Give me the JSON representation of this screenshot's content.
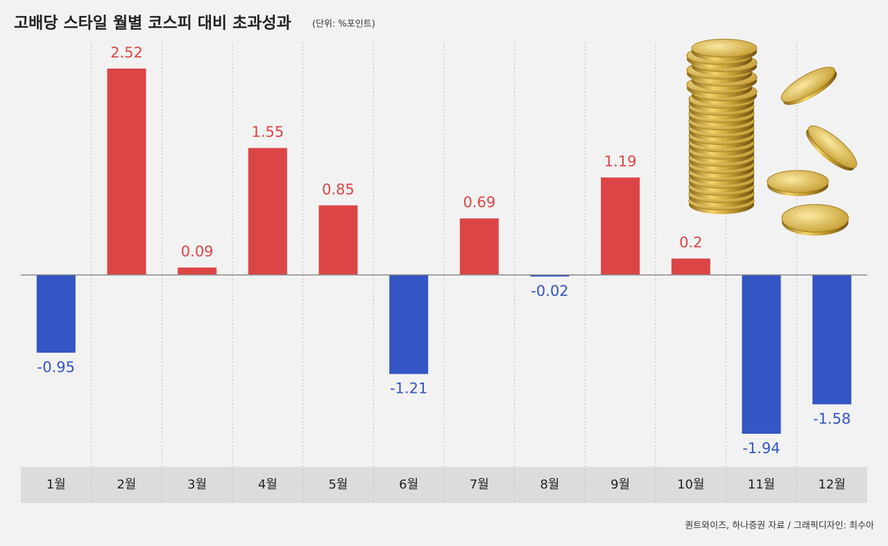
{
  "chart_data": {
    "type": "bar",
    "title": "고배당 스타일 월별 코스피 대비 초과성과",
    "subtitle": "(단위: %포인트)",
    "source": "퀀트와이즈, 하나증권 자료 /  그래픽디자인: 최수아",
    "categories": [
      "1월",
      "2월",
      "3월",
      "4월",
      "5월",
      "6월",
      "7월",
      "8월",
      "9월",
      "10월",
      "11월",
      "12월"
    ],
    "values": [
      -0.95,
      2.52,
      0.09,
      1.55,
      0.85,
      -1.21,
      0.69,
      -0.02,
      1.19,
      0.2,
      -1.94,
      -1.58
    ],
    "positive_color": "#dc4545",
    "negative_color": "#3455c4"
  }
}
